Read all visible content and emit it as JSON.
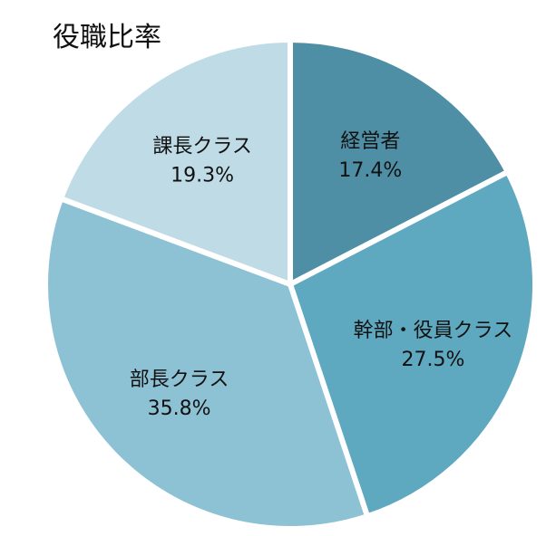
{
  "chart_data": {
    "type": "pie",
    "title": "役職比率",
    "slices": [
      {
        "label": "経営者",
        "value": 17.4,
        "percent_text": "17.4%",
        "color": "#4e8fa6"
      },
      {
        "label": "幹部・役員クラス",
        "value": 27.5,
        "percent_text": "27.5%",
        "color": "#5fa9c0"
      },
      {
        "label": "部長クラス",
        "value": 35.8,
        "percent_text": "35.8%",
        "color": "#8dc2d4"
      },
      {
        "label": "課長クラス",
        "value": 19.3,
        "percent_text": "19.3%",
        "color": "#bfdbe5"
      }
    ],
    "start_angle_deg": 0,
    "direction": "clockwise",
    "slice_separator_color": "#ffffff"
  }
}
